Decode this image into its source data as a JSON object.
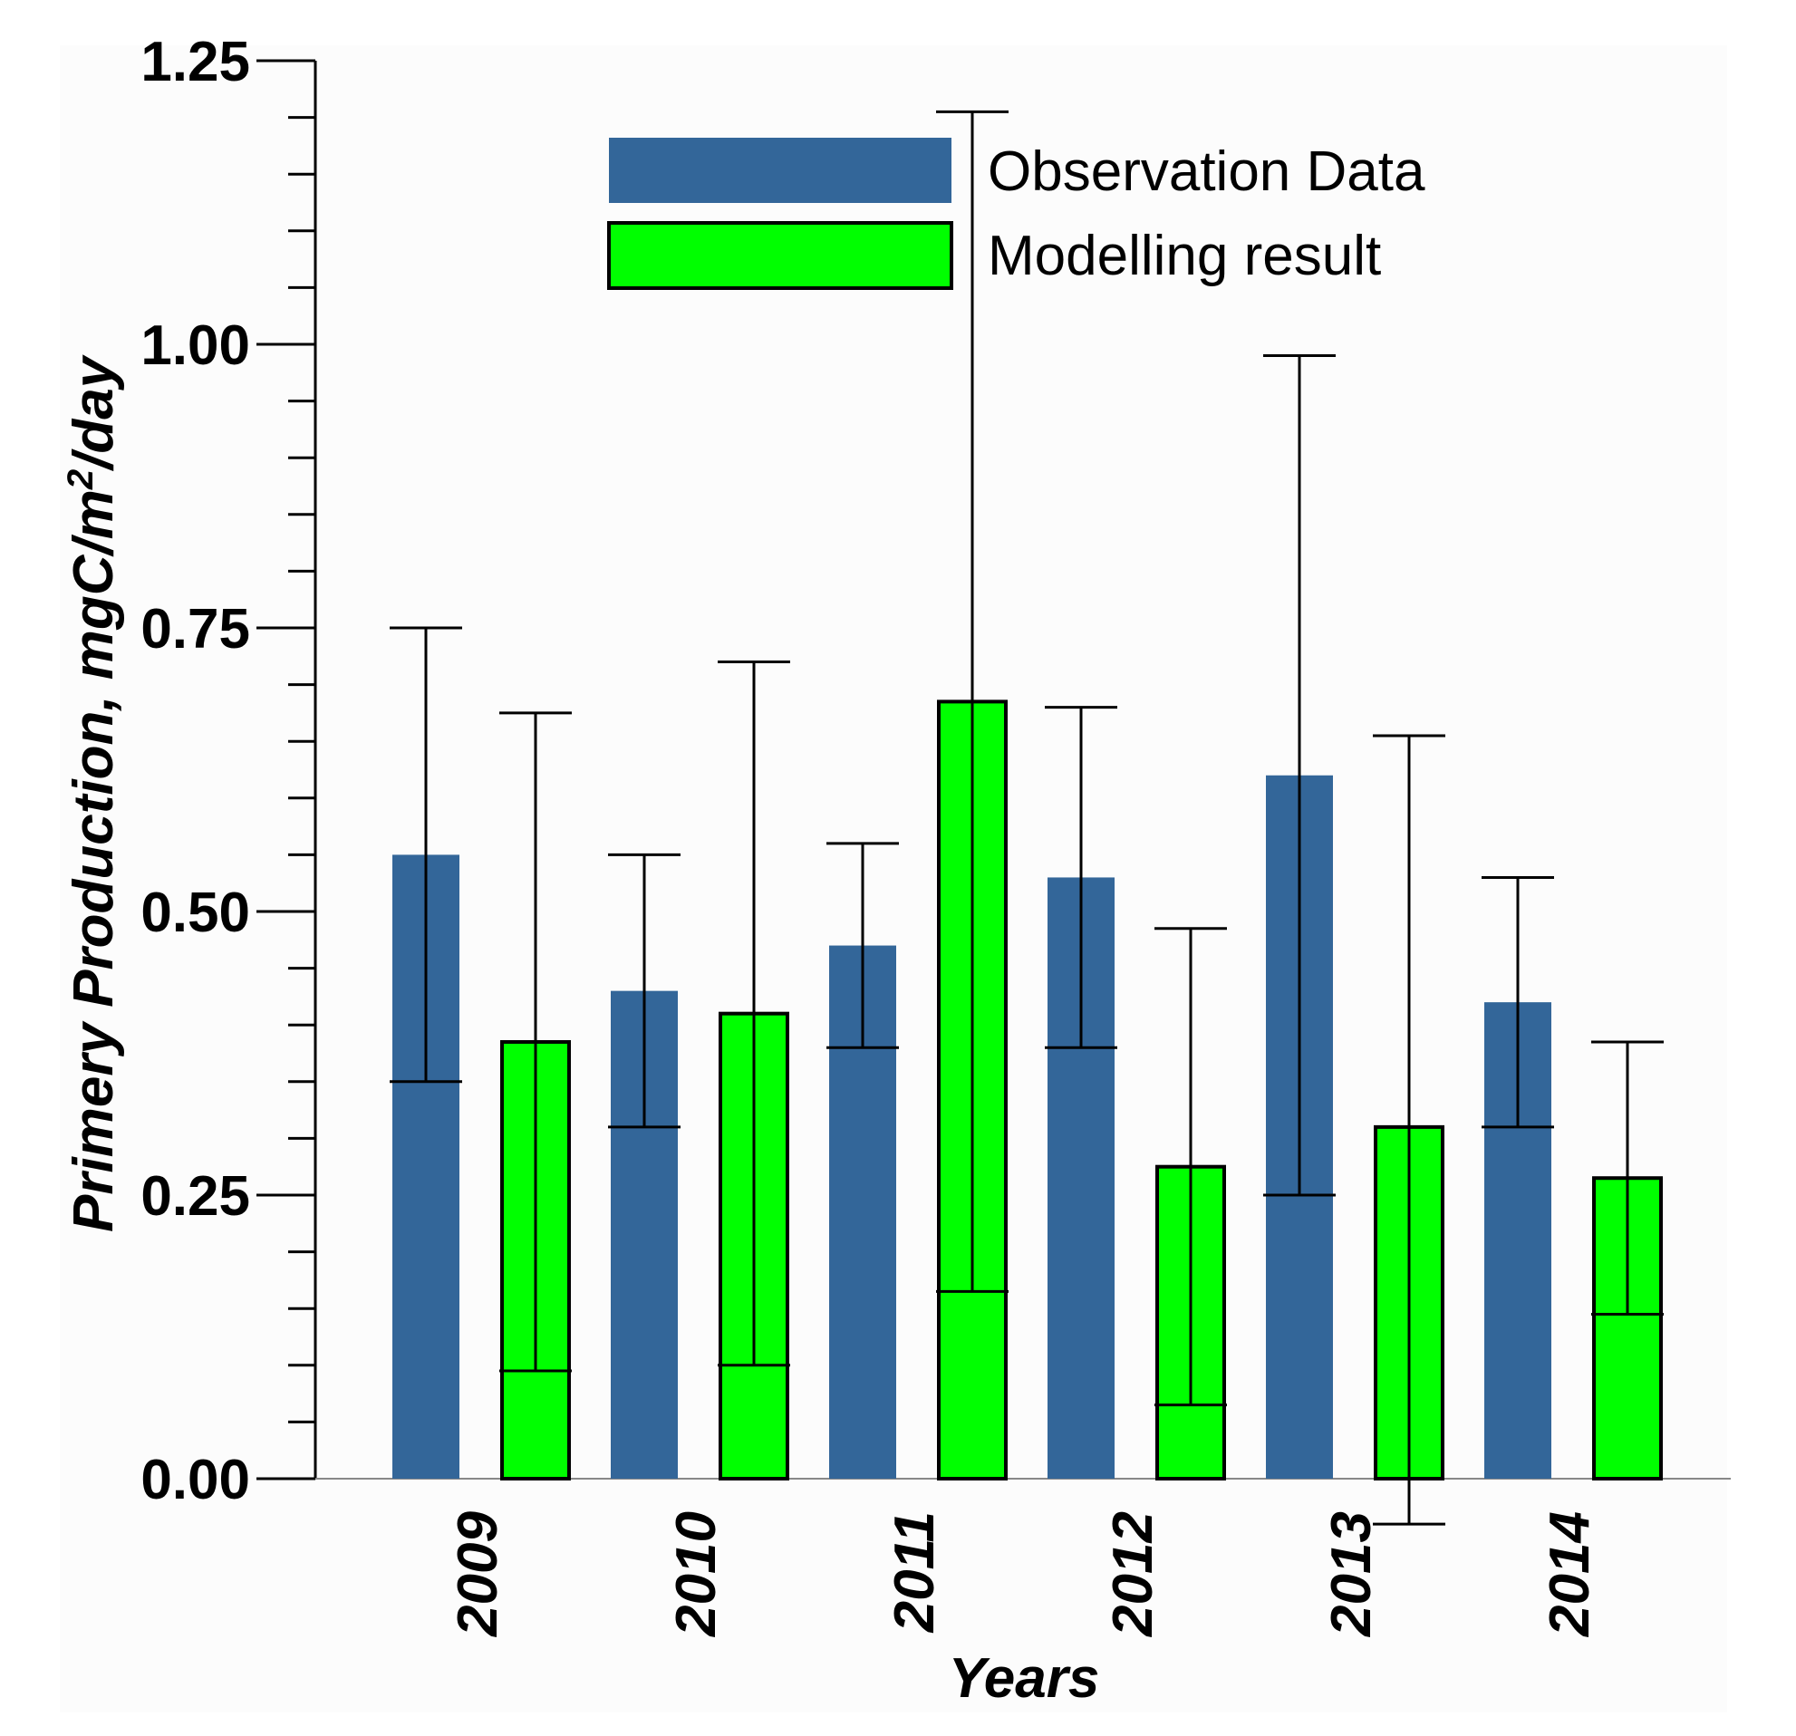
{
  "chart_data": {
    "type": "bar",
    "title": "",
    "xlabel": "Years",
    "ylabel_main": "Primery Production, mgC/m",
    "ylabel_sup": "2",
    "ylabel_tail": "/day",
    "ylim": [
      0,
      1.25
    ],
    "yticks": [
      0,
      0.25,
      0.5,
      0.75,
      1.0,
      1.25
    ],
    "ytick_labels": [
      "0.00",
      "0.25",
      "0.50",
      "0.75",
      "1.00",
      "1.25"
    ],
    "yminor_step": 0.05,
    "categories": [
      "2009",
      "2010",
      "2011",
      "2012",
      "2013",
      "2014"
    ],
    "legend_position": "top-center",
    "series": [
      {
        "name": "Observation Data",
        "color": "#336699",
        "outline": false,
        "values": [
          0.55,
          0.43,
          0.47,
          0.53,
          0.62,
          0.42
        ],
        "err_low": [
          0.35,
          0.31,
          0.38,
          0.38,
          0.25,
          0.31
        ],
        "err_high": [
          0.75,
          0.55,
          0.56,
          0.68,
          0.99,
          0.53
        ]
      },
      {
        "name": "Modelling result",
        "color": "#00ff00",
        "outline": true,
        "values": [
          0.385,
          0.41,
          0.685,
          0.275,
          0.31,
          0.265
        ],
        "err_low": [
          0.095,
          0.1,
          0.165,
          0.065,
          -0.04,
          0.145
        ],
        "err_high": [
          0.675,
          0.72,
          1.205,
          0.485,
          0.655,
          0.385
        ]
      }
    ]
  }
}
